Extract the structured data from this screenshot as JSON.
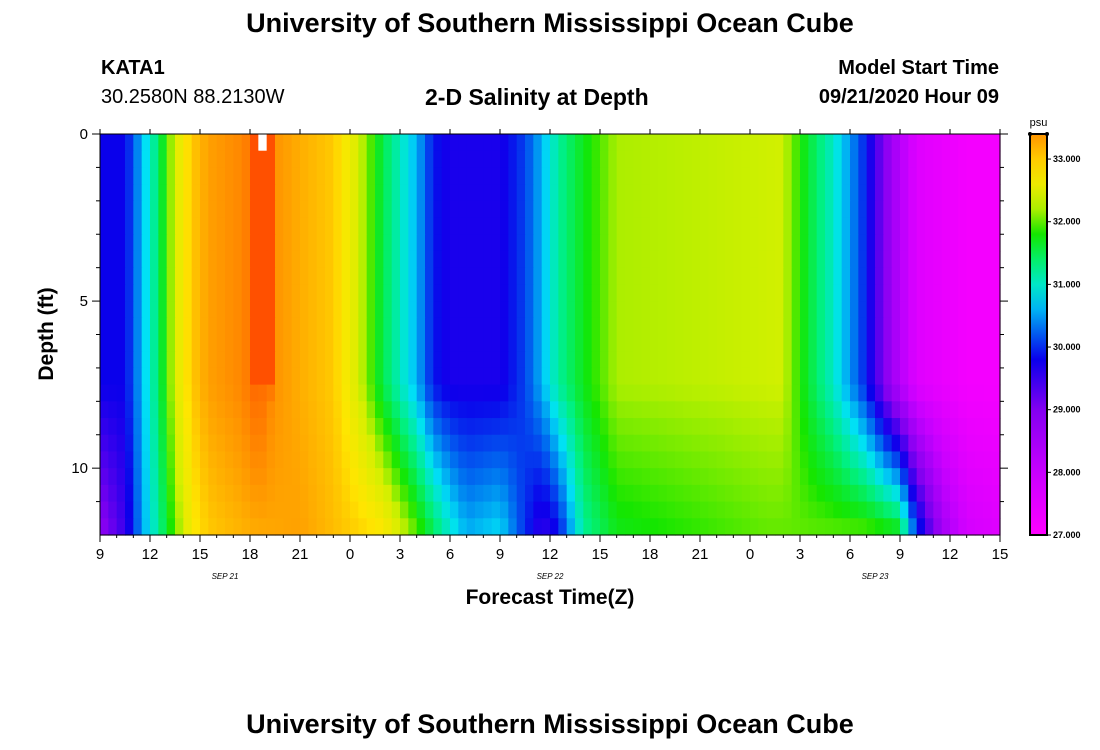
{
  "header": {
    "title": "University of Southern Mississippi Ocean Cube",
    "footer_title": "University of Southern Mississippi Ocean Cube",
    "station": "KATA1",
    "coords": "30.2580N 88.2130W",
    "subtitle": "2-D Salinity at Depth",
    "model_label": "Model Start Time",
    "model_time": "09/21/2020 Hour 09"
  },
  "chart_data": {
    "type": "heatmap",
    "title": "2-D Salinity at Depth",
    "xlabel": "Forecast Time(Z)",
    "ylabel": "Depth (ft)",
    "x_tick_labels": [
      "9",
      "12",
      "15",
      "18",
      "21",
      "0",
      "3",
      "6",
      "9",
      "12",
      "15",
      "18",
      "21",
      "0",
      "3",
      "6",
      "9",
      "12",
      "15"
    ],
    "x_hours": [
      0,
      3,
      6,
      9,
      12,
      15,
      18,
      21,
      24,
      27,
      30,
      33,
      36,
      39,
      42,
      45,
      48,
      51,
      54
    ],
    "x_range_hours": [
      0,
      54
    ],
    "date_labels": [
      {
        "label": "SEP 21",
        "hour": 7.5
      },
      {
        "label": "SEP 22",
        "hour": 27
      },
      {
        "label": "SEP 23",
        "hour": 46.5
      }
    ],
    "y_ticks": [
      0,
      5,
      10
    ],
    "y_tick_labels": [
      "0",
      "5",
      "10"
    ],
    "ylim": [
      0,
      12
    ],
    "depth_levels": [
      0,
      0.5,
      1,
      1.5,
      2,
      2.5,
      3,
      3.5,
      4,
      4.5,
      5,
      5.5,
      6,
      6.5,
      7,
      7.5,
      8,
      8.5,
      9,
      9.5,
      10,
      10.5,
      11,
      11.5,
      12
    ],
    "colorbar": {
      "unit": "psu",
      "min": 27.0,
      "max": 33.4,
      "tick_values": [
        27,
        28,
        29,
        30,
        31,
        32,
        33
      ],
      "tick_labels": [
        "27.000",
        "28.000",
        "29.000",
        "30.000",
        "31.000",
        "32.000",
        "33.000"
      ]
    },
    "profile_surface": [
      [
        0,
        29.8
      ],
      [
        1.5,
        29.8
      ],
      [
        2.5,
        30.6
      ],
      [
        3.5,
        31.4
      ],
      [
        4.5,
        32.4
      ],
      [
        5.5,
        33.0
      ],
      [
        6.5,
        33.3
      ],
      [
        8.5,
        33.5
      ],
      [
        9.5,
        33.8
      ],
      [
        10.5,
        33.4
      ],
      [
        12,
        33.2
      ],
      [
        14,
        33.0
      ],
      [
        15,
        32.6
      ],
      [
        16,
        32.1
      ],
      [
        17,
        31.5
      ],
      [
        19,
        30.6
      ],
      [
        20,
        29.9
      ],
      [
        21,
        29.7
      ],
      [
        24,
        29.7
      ],
      [
        25.5,
        30.1
      ],
      [
        26.5,
        30.6
      ],
      [
        27.5,
        31.2
      ],
      [
        29,
        31.7
      ],
      [
        31,
        32.2
      ],
      [
        41,
        32.3
      ],
      [
        42.5,
        31.6
      ],
      [
        44,
        31.0
      ],
      [
        45.5,
        30.2
      ],
      [
        46,
        29.9
      ],
      [
        47.5,
        28.6
      ],
      [
        49,
        27.6
      ],
      [
        52,
        27.2
      ],
      [
        54,
        27.2
      ]
    ],
    "profile_bottom": [
      [
        0,
        28.8
      ],
      [
        1.5,
        29.5
      ],
      [
        2.5,
        30.5
      ],
      [
        3.5,
        31.2
      ],
      [
        4.5,
        32.0
      ],
      [
        5.5,
        32.7
      ],
      [
        6.5,
        33.0
      ],
      [
        9,
        33.2
      ],
      [
        12,
        33.3
      ],
      [
        15,
        33.0
      ],
      [
        17,
        32.8
      ],
      [
        19,
        32.0
      ],
      [
        20,
        31.5
      ],
      [
        21,
        31.0
      ],
      [
        22,
        30.6
      ],
      [
        24,
        30.8
      ],
      [
        25.5,
        30.0
      ],
      [
        26.5,
        29.5
      ],
      [
        27.5,
        29.8
      ],
      [
        28,
        30.3
      ],
      [
        29,
        31.2
      ],
      [
        31,
        31.7
      ],
      [
        40,
        32.0
      ],
      [
        46,
        32.0
      ],
      [
        48,
        31.8
      ],
      [
        48.5,
        30.8
      ],
      [
        49.5,
        29.6
      ],
      [
        50.5,
        28.6
      ],
      [
        52,
        27.8
      ],
      [
        54,
        27.6
      ]
    ],
    "bottom_depth_start": 7.5,
    "max_patch": {
      "x_hours": [
        9,
        10.5
      ],
      "depth": [
        0,
        7.5
      ],
      "value": 33.8,
      "extra_depth": 7.5,
      "extra_hours": [
        9.5,
        10.5
      ]
    },
    "max_marker": {
      "x_hours": [
        9.4,
        9.9
      ],
      "depth": [
        0,
        0.5
      ],
      "value": 34.5
    }
  }
}
